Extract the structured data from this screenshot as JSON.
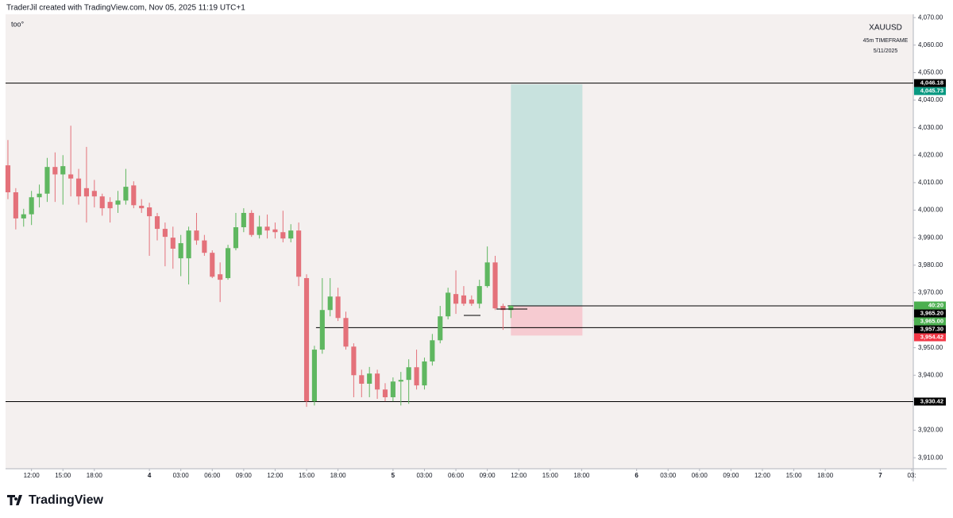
{
  "header": "TraderJil created with TradingView.com, Nov 05, 2025 11:19 UTC+1",
  "footer": "TradingView",
  "chart_data": {
    "type": "candlestick",
    "annotation": "too°",
    "symbol": "XAUUSD",
    "timeframe": "45m TIMEFRAME",
    "date": "5/11/2025",
    "up_color": "#5fb760",
    "down_color": "#e4717a",
    "grid": false,
    "open": [
      4016.3,
      4006.5,
      3997,
      3998.5,
      4004.7,
      4006,
      4015.7,
      4013,
      4013,
      4011.5,
      4008,
      4007,
      4005,
      4003,
      4002,
      4003.5,
      4009,
      4001.6,
      4001,
      3997.8,
      3993.2,
      3990,
      3982.5,
      3982.5,
      3992.6,
      3989,
      3984.5,
      3976.7,
      3975.3,
      3986.2,
      3993.8,
      3999,
      3991,
      3994,
      3993,
      3992,
      3989.7,
      3992.6,
      3975.3,
      3930.5,
      3949.3,
      3963.7,
      3968.6,
      3960.8,
      3950.4,
      3940,
      3936.9,
      3940.6,
      3934.8,
      3932,
      3937.7,
      3938.3,
      3942.9,
      3936.3,
      3945,
      3952.7,
      3961.4,
      3969.5,
      3969,
      3967.5,
      3966,
      3972.4,
      3981,
      3965.2,
      3963.7
    ],
    "high": [
      4025.5,
      4008,
      4000.5,
      4007,
      4009.3,
      4019,
      4021,
      4020,
      4030.7,
      4015,
      4023,
      4011,
      4006,
      4004.7,
      4007,
      4015,
      4010.5,
      4004,
      4002.7,
      3999,
      3995.5,
      3994,
      3991,
      3994,
      3999,
      3991,
      3985.4,
      3981,
      3987.4,
      3999,
      4000.7,
      4000,
      3998,
      3998.4,
      3995.5,
      3999.8,
      3994.9,
      3995.5,
      3976.7,
      3950.7,
      3975.3,
      3975.3,
      3971.8,
      3963.1,
      3951.6,
      3942,
      3943,
      3942,
      3937.1,
      3939.2,
      3941.2,
      3945.8,
      3949.3,
      3946.4,
      3955,
      3965.2,
      3971.8,
      3978.1,
      3972.4,
      3969,
      3974.7,
      3986.8,
      3983.4,
      3966,
      3965.5
    ],
    "low": [
      4004,
      3993,
      3994,
      3994.6,
      4001,
      4003,
      4003,
      4002,
      4005,
      4002,
      3995.5,
      4001,
      3998,
      3995.5,
      3999,
      4002,
      4000.7,
      3999,
      3983.4,
      3989,
      3979.6,
      3978.7,
      3976,
      3973,
      3987.4,
      3983.4,
      3975.3,
      3966.6,
      3974.7,
      3985.4,
      3992,
      3990.3,
      3989.7,
      3989.7,
      3989.7,
      3988.3,
      3988.3,
      3972.4,
      3928.5,
      3929,
      3947.8,
      3961.4,
      3959.7,
      3949.3,
      3932,
      3932,
      3932,
      3931.4,
      3930.5,
      3930.5,
      3929,
      3929.6,
      3934.8,
      3934.8,
      3943.5,
      3951.6,
      3960.3,
      3962.3,
      3965.2,
      3965.2,
      3964.3,
      3971.8,
      3963.7,
      3956.5,
      3960.8
    ],
    "close": [
      4006.5,
      3997,
      3998.5,
      4004.7,
      4006,
      4015.7,
      4013,
      4016,
      4011.5,
      4005,
      4005,
      4005,
      4000.7,
      4000.7,
      4003.5,
      4008.5,
      4001.8,
      4000.7,
      3997.8,
      3993.2,
      3990.3,
      3986,
      3988,
      3992.6,
      3989,
      3984.5,
      3975.8,
      3974.7,
      3986.2,
      3993.8,
      3999,
      3991,
      3994,
      3992.6,
      3992,
      3989.7,
      3992.6,
      3975.8,
      3930.5,
      3949.3,
      3963.7,
      3968.6,
      3960.8,
      3950.4,
      3940,
      3936.9,
      3940.6,
      3934.8,
      3932,
      3937.7,
      3938.3,
      3942.9,
      3936.3,
      3945,
      3952.7,
      3961.4,
      3970,
      3966,
      3966,
      3966,
      3972.4,
      3981,
      3964.3,
      3963.7,
      3965.2
    ],
    "xlim": [
      -0.3,
      115.2
    ],
    "ylim": [
      3906,
      4071.2
    ],
    "xticks": [
      {
        "value": 3,
        "label": "12:00"
      },
      {
        "value": 7,
        "label": "15:00"
      },
      {
        "value": 11,
        "label": "18:00"
      },
      {
        "value": 18,
        "label": "4"
      },
      {
        "value": 22,
        "label": "03:00"
      },
      {
        "value": 26,
        "label": "06:00"
      },
      {
        "value": 30,
        "label": "09:00"
      },
      {
        "value": 34,
        "label": "12:00"
      },
      {
        "value": 38,
        "label": "15:00"
      },
      {
        "value": 42,
        "label": "18:00"
      },
      {
        "value": 49,
        "label": "5"
      },
      {
        "value": 53,
        "label": "03:00"
      },
      {
        "value": 57,
        "label": "06:00"
      },
      {
        "value": 61,
        "label": "09:00"
      },
      {
        "value": 65,
        "label": "12:00"
      },
      {
        "value": 69,
        "label": "15:00"
      },
      {
        "value": 73,
        "label": "18:00"
      },
      {
        "value": 80,
        "label": "6"
      },
      {
        "value": 84,
        "label": "03:00"
      },
      {
        "value": 88,
        "label": "06:00"
      },
      {
        "value": 92,
        "label": "09:00"
      },
      {
        "value": 96,
        "label": "12:00"
      },
      {
        "value": 100,
        "label": "15:00"
      },
      {
        "value": 104,
        "label": "18:00"
      },
      {
        "value": 111,
        "label": "7"
      },
      {
        "value": 115,
        "label": "03:"
      }
    ],
    "yticks": [
      {
        "value": 4070,
        "label": "4,070.00"
      },
      {
        "value": 4060,
        "label": "4,060.00"
      },
      {
        "value": 4050,
        "label": "4,050.00"
      },
      {
        "value": 4040,
        "label": "4,040.00"
      },
      {
        "value": 4030,
        "label": "4,030.00"
      },
      {
        "value": 4020,
        "label": "4,020.00"
      },
      {
        "value": 4010,
        "label": "4,010.00"
      },
      {
        "value": 4000,
        "label": "4,000.00"
      },
      {
        "value": 3990,
        "label": "3,990.00"
      },
      {
        "value": 3980,
        "label": "3,980.00"
      },
      {
        "value": 3970,
        "label": "3,970.00"
      },
      {
        "value": 3960,
        "label": "3,960.00"
      },
      {
        "value": 3950,
        "label": "3,950.00"
      },
      {
        "value": 3940,
        "label": "3,940.00"
      },
      {
        "value": 3930,
        "label": "3,930.00"
      },
      {
        "value": 3920,
        "label": "3,920.00"
      },
      {
        "value": 3910,
        "label": "3,910.00"
      }
    ],
    "levels": [
      {
        "value": 4046.18,
        "label": "4,046.18",
        "start": -0.3
      },
      {
        "value": 3965.2,
        "label": "3,965.20",
        "start": 63.6
      },
      {
        "value": 3957.3,
        "label": "3,957.30",
        "start": 39.2
      },
      {
        "value": 3930.42,
        "label": "3,930.42",
        "start": -0.3
      }
    ],
    "level_color": "#000000",
    "position": {
      "start": 64,
      "end": 73.1,
      "target": {
        "value": 4045.73,
        "label": "4,045.73"
      },
      "entry": {
        "value": 3965,
        "label": "3,965.00"
      },
      "stop": {
        "value": 3954.42,
        "label": "3,954.42"
      },
      "target_color": "#c8e2de",
      "stop_color": "#f6cbd1",
      "target_label_color": "#089981",
      "entry_label_color": "#4caf50",
      "stop_label_color": "#f23645"
    },
    "countdown": "40:20"
  }
}
